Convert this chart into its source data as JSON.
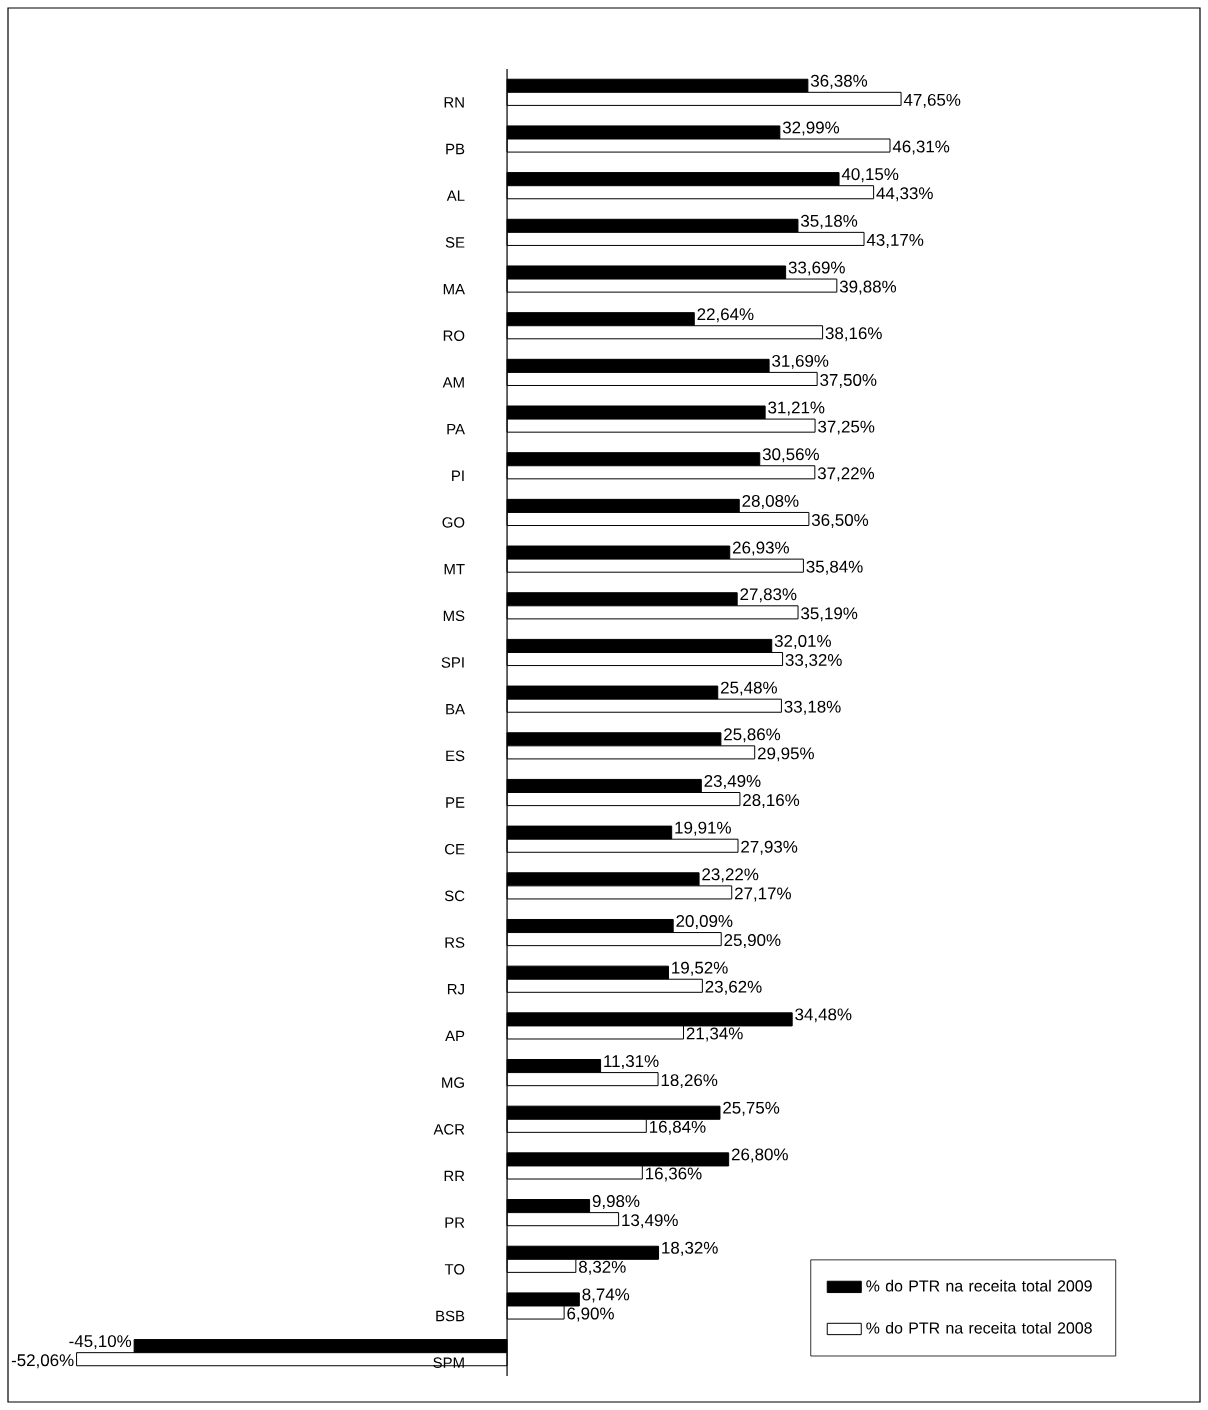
{
  "chart_data": {
    "type": "bar",
    "orientation": "horizontal",
    "categories": [
      "RN",
      "PB",
      "AL",
      "SE",
      "MA",
      "RO",
      "AM",
      "PA",
      "PI",
      "GO",
      "MT",
      "MS",
      "SPI",
      "BA",
      "ES",
      "PE",
      "CE",
      "SC",
      "RS",
      "RJ",
      "AP",
      "MG",
      "ACR",
      "RR",
      "PR",
      "TO",
      "BSB",
      "SPM"
    ],
    "legend": "bottom right",
    "series": [
      {
        "name": "% do PTR na receita total 2009",
        "color": "#000000",
        "values": [
          36.38,
          32.99,
          40.15,
          35.18,
          33.69,
          22.64,
          31.69,
          31.21,
          30.56,
          28.08,
          26.93,
          27.83,
          32.01,
          25.48,
          25.86,
          23.49,
          19.91,
          23.22,
          20.09,
          19.52,
          34.48,
          11.31,
          25.75,
          26.8,
          9.98,
          18.32,
          8.74,
          -45.1
        ],
        "value_labels": [
          "36,38%",
          "32,99%",
          "40,15%",
          "35,18%",
          "33,69%",
          "22,64%",
          "31,69%",
          "31,21%",
          "30,56%",
          "28,08%",
          "26,93%",
          "27,83%",
          "32,01%",
          "25,48%",
          "25,86%",
          "23,49%",
          "19,91%",
          "23,22%",
          "20,09%",
          "19,52%",
          "34,48%",
          "11,31%",
          "25,75%",
          "26,80%",
          "9,98%",
          "18,32%",
          "8,74%",
          "-45,10%"
        ]
      },
      {
        "name": "% do PTR na receita total 2008",
        "color": "#ffffff",
        "values": [
          47.65,
          46.31,
          44.33,
          43.17,
          39.88,
          38.16,
          37.5,
          37.25,
          37.22,
          36.5,
          35.84,
          35.19,
          33.32,
          33.18,
          29.95,
          28.16,
          27.93,
          27.17,
          25.9,
          23.62,
          21.34,
          18.26,
          16.84,
          16.36,
          13.49,
          8.32,
          6.9,
          -52.06
        ],
        "value_labels": [
          "47,65%",
          "46,31%",
          "44,33%",
          "43,17%",
          "39,88%",
          "38,16%",
          "37,50%",
          "37,25%",
          "37,22%",
          "36,50%",
          "35,84%",
          "35,19%",
          "33,32%",
          "33,18%",
          "29,95%",
          "28,16%",
          "27,93%",
          "27,17%",
          "25,90%",
          "23,62%",
          "21,34%",
          "18,26%",
          "16,84%",
          "16,36%",
          "13,49%",
          "8,32%",
          "6,90%",
          "-52,06%"
        ]
      }
    ]
  }
}
